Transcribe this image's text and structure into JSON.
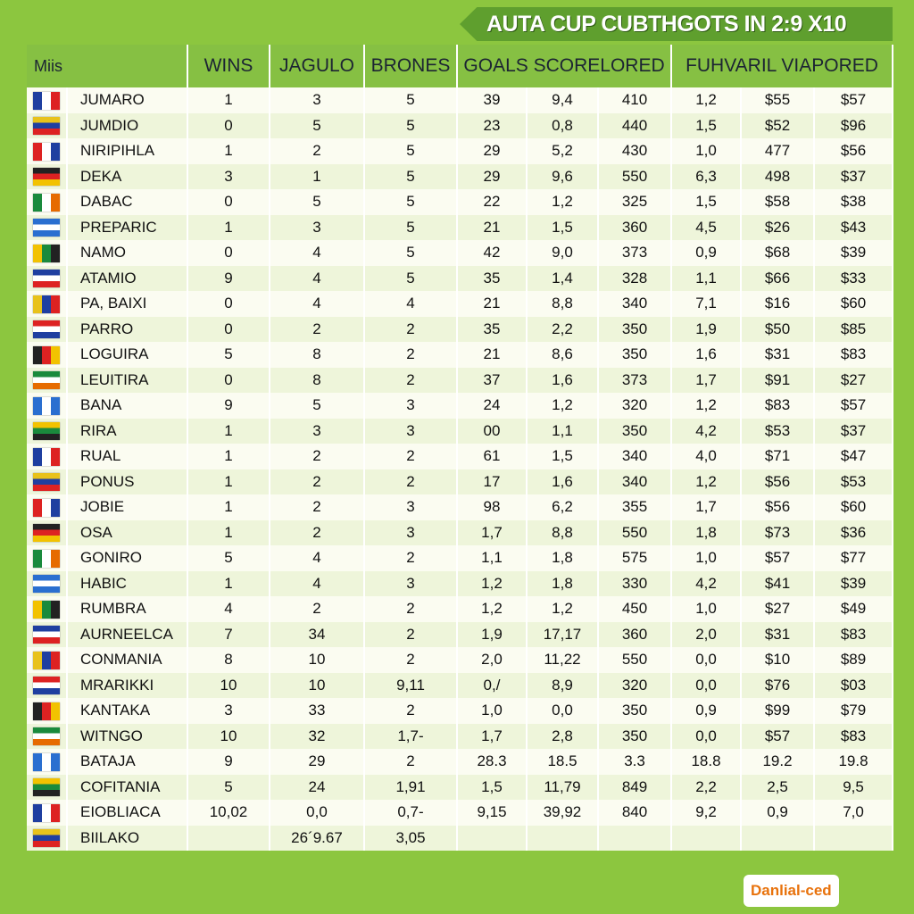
{
  "title": "AUTA CUP CUBTHGOTS IN 2:9 X10",
  "header": [
    "Miis",
    "WINS",
    "JAGULO",
    "BRONES",
    "GOALS SCORELORED",
    "FUHVARIL VIAPORED"
  ],
  "rows": [
    {
      "name": "JUMARO",
      "cells": [
        "1",
        "3",
        "5",
        "39",
        "9,4",
        "410",
        "1,2",
        "$55",
        "$57"
      ]
    },
    {
      "name": "JUMDIO",
      "cells": [
        "0",
        "5",
        "5",
        "23",
        "0,8",
        "440",
        "1,5",
        "$52",
        "$96"
      ]
    },
    {
      "name": "NIRIPIHLA",
      "cells": [
        "1",
        "2",
        "5",
        "29",
        "5,2",
        "430",
        "1,0",
        "477",
        "$56"
      ]
    },
    {
      "name": "DEKA",
      "cells": [
        "3",
        "1",
        "5",
        "29",
        "9,6",
        "550",
        "6,3",
        "498",
        "$37"
      ]
    },
    {
      "name": "DABAC",
      "cells": [
        "0",
        "5",
        "5",
        "22",
        "1,2",
        "325",
        "1,5",
        "$58",
        "$38"
      ]
    },
    {
      "name": "PREPARIC",
      "cells": [
        "1",
        "3",
        "5",
        "21",
        "1,5",
        "360",
        "4,5",
        "$26",
        "$43"
      ]
    },
    {
      "name": "NAMO",
      "cells": [
        "0",
        "4",
        "5",
        "42",
        "9,0",
        "373",
        "0,9",
        "$68",
        "$39"
      ]
    },
    {
      "name": "ATAMIO",
      "cells": [
        "9",
        "4",
        "5",
        "35",
        "1,4",
        "328",
        "1,1",
        "$66",
        "$33"
      ]
    },
    {
      "name": "PA, BAIXI",
      "cells": [
        "0",
        "4",
        "4",
        "21",
        "8,8",
        "340",
        "7,1",
        "$16",
        "$60"
      ]
    },
    {
      "name": "PARRO",
      "cells": [
        "0",
        "2",
        "2",
        "35",
        "2,2",
        "350",
        "1,9",
        "$50",
        "$85"
      ]
    },
    {
      "name": "LOGUIRA",
      "cells": [
        "5",
        "8",
        "2",
        "21",
        "8,6",
        "350",
        "1,6",
        "$31",
        "$83"
      ]
    },
    {
      "name": "LEUITIRA",
      "cells": [
        "0",
        "8",
        "2",
        "37",
        "1,6",
        "373",
        "1,7",
        "$91",
        "$27"
      ]
    },
    {
      "name": "BANA",
      "cells": [
        "9",
        "5",
        "3",
        "24",
        "1,2",
        "320",
        "1,2",
        "$83",
        "$57"
      ]
    },
    {
      "name": "RIRA",
      "cells": [
        "1",
        "3",
        "3",
        "00",
        "1,1",
        "350",
        "4,2",
        "$53",
        "$37"
      ]
    },
    {
      "name": "RUAL",
      "cells": [
        "1",
        "2",
        "2",
        "61",
        "1,5",
        "340",
        "4,0",
        "$71",
        "$47"
      ]
    },
    {
      "name": "PONUS",
      "cells": [
        "1",
        "2",
        "2",
        "17",
        "1,6",
        "340",
        "1,2",
        "$56",
        "$53"
      ]
    },
    {
      "name": "JOBIE",
      "cells": [
        "1",
        "2",
        "3",
        "98",
        "6,2",
        "355",
        "1,7",
        "$56",
        "$60"
      ]
    },
    {
      "name": "OSA",
      "cells": [
        "1",
        "2",
        "3",
        "1,7",
        "8,8",
        "550",
        "1,8",
        "$73",
        "$36"
      ]
    },
    {
      "name": "GONIRO",
      "cells": [
        "5",
        "4",
        "2",
        "1,1",
        "1,8",
        "575",
        "1,0",
        "$57",
        "$77"
      ]
    },
    {
      "name": "HABIC",
      "cells": [
        "1",
        "4",
        "3",
        "1,2",
        "1,8",
        "330",
        "4,2",
        "$41",
        "$39"
      ]
    },
    {
      "name": "RUMBRA",
      "cells": [
        "4",
        "2",
        "2",
        "1,2",
        "1,2",
        "450",
        "1,0",
        "$27",
        "$49"
      ]
    },
    {
      "name": "AURNEELCA",
      "cells": [
        "7",
        "34",
        "2",
        "1,9",
        "17,17",
        "360",
        "2,0",
        "$31",
        "$83"
      ]
    },
    {
      "name": "CONMANIA",
      "cells": [
        "8",
        "10",
        "2",
        "2,0",
        "11,22",
        "550",
        "0,0",
        "$10",
        "$89"
      ]
    },
    {
      "name": "MRARIKKI",
      "cells": [
        "10",
        "10",
        "9,11",
        "0,/",
        "8,9",
        "320",
        "0,0",
        "$76",
        "$03"
      ]
    },
    {
      "name": "KANTAKA",
      "cells": [
        "3",
        "33",
        "2",
        "1,0",
        "0,0",
        "350",
        "0,9",
        "$99",
        "$79"
      ]
    },
    {
      "name": "WITNGO",
      "cells": [
        "10",
        "32",
        "1,7-",
        "1,7",
        "2,8",
        "350",
        "0,0",
        "$57",
        "$83"
      ]
    },
    {
      "name": "BATAJA",
      "cells": [
        "9",
        "29",
        "2",
        "28.3",
        "18.5",
        "3.3",
        "18.8",
        "19.2",
        "19.8"
      ]
    },
    {
      "name": "COFITANIA",
      "cells": [
        "5",
        "24",
        "1,91",
        "1,5",
        "11,79",
        "849",
        "2,2",
        "2,5",
        "9,5"
      ]
    },
    {
      "name": "EIOBLIACA",
      "cells": [
        "10,02",
        "0,0",
        "0,7-",
        "9,15",
        "39,92",
        "840",
        "9,2",
        "0,9",
        "7,0"
      ]
    },
    {
      "name": "BIILAKO",
      "cells": [
        null,
        "26´9.67",
        "3,05",
        null,
        null,
        null,
        null,
        null,
        null
      ]
    }
  ],
  "logo": "Danlial-ced"
}
